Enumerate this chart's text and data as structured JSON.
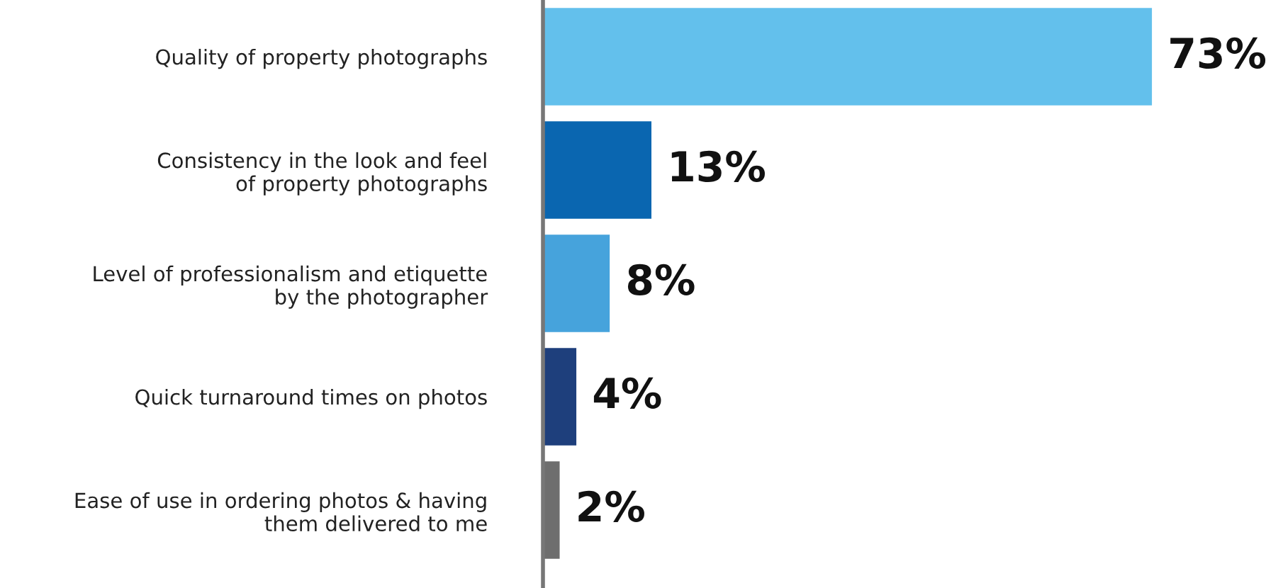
{
  "chart_data": {
    "type": "bar",
    "orientation": "horizontal",
    "categories": [
      "Quality of property photographs",
      "Consistency in the look and feel\nof property photographs",
      "Level of professionalism and etiquette\nby the photographer",
      "Quick turnaround times on photos",
      "Ease of use in ordering photos & having\nthem delivered to me"
    ],
    "values": [
      73,
      13,
      8,
      4,
      2
    ],
    "colors": [
      "#63c0ec",
      "#0a66b0",
      "#46a3dc",
      "#1e3f7c",
      "#6e6e6e"
    ],
    "value_labels": [
      "73%",
      "13%",
      "8%",
      "4%",
      "2%"
    ],
    "grid": false,
    "legend": false,
    "tick_labels": "y"
  }
}
